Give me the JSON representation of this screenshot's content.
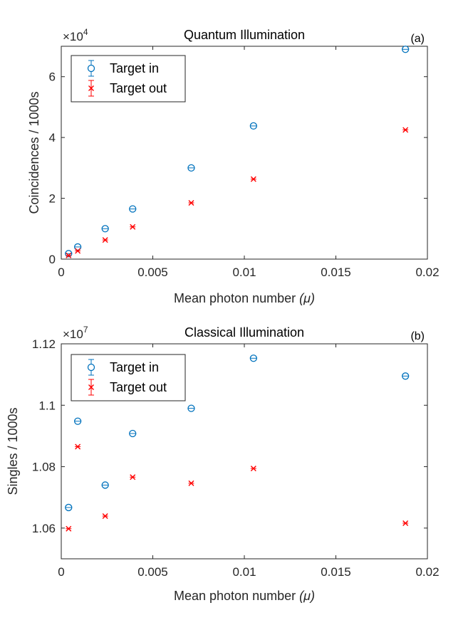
{
  "chart_data": [
    {
      "type": "scatter",
      "title": "Quantum Illumination",
      "panel_label": "(a)",
      "xlabel": "Mean photon number",
      "xlabel_symbol": "(μ)",
      "ylabel": "Coincidences / 1000s",
      "multiplier_base": "×10",
      "multiplier_exp": "4",
      "xlim": [
        0,
        0.02
      ],
      "ylim": [
        0,
        7
      ],
      "xticks": [
        0,
        0.005,
        0.01,
        0.015,
        0.02
      ],
      "xtick_labels": [
        "0",
        "0.005",
        "0.01",
        "0.015",
        "0.02"
      ],
      "yticks": [
        0,
        2,
        4,
        6
      ],
      "ytick_labels": [
        "0",
        "2",
        "4",
        "6"
      ],
      "legend_position": "top-left",
      "series": [
        {
          "name": "Target in",
          "marker": "circle",
          "color": "#0072BD",
          "x": [
            0.0004,
            0.0009,
            0.0024,
            0.0039,
            0.0071,
            0.0105,
            0.0188
          ],
          "y": [
            0.18,
            0.4,
            1.0,
            1.65,
            3.0,
            4.38,
            6.9
          ]
        },
        {
          "name": "Target out",
          "marker": "x",
          "color": "#FF0000",
          "x": [
            0.0004,
            0.0009,
            0.0024,
            0.0039,
            0.0071,
            0.0105,
            0.0188
          ],
          "y": [
            0.12,
            0.27,
            0.63,
            1.06,
            1.85,
            2.63,
            4.25
          ]
        }
      ]
    },
    {
      "type": "scatter",
      "title": "Classical Illumination",
      "panel_label": "(b)",
      "xlabel": "Mean photon number",
      "xlabel_symbol": "(μ)",
      "ylabel": "Singles / 1000s",
      "multiplier_base": "×10",
      "multiplier_exp": "7",
      "xlim": [
        0,
        0.02
      ],
      "ylim": [
        1.05,
        1.12
      ],
      "xticks": [
        0,
        0.005,
        0.01,
        0.015,
        0.02
      ],
      "xtick_labels": [
        "0",
        "0.005",
        "0.01",
        "0.015",
        "0.02"
      ],
      "yticks": [
        1.06,
        1.08,
        1.1,
        1.12
      ],
      "ytick_labels": [
        "1.06",
        "1.08",
        "1.1",
        "1.12"
      ],
      "legend_position": "top-left",
      "series": [
        {
          "name": "Target in",
          "marker": "circle",
          "color": "#0072BD",
          "x": [
            0.0004,
            0.0009,
            0.0024,
            0.0039,
            0.0071,
            0.0105,
            0.0188
          ],
          "y": [
            1.0667,
            1.0948,
            1.074,
            1.0908,
            1.099,
            1.1153,
            1.1095
          ]
        },
        {
          "name": "Target out",
          "marker": "x",
          "color": "#FF0000",
          "x": [
            0.0004,
            0.0009,
            0.0024,
            0.0039,
            0.0071,
            0.0105,
            0.0188
          ],
          "y": [
            1.0598,
            1.0865,
            1.0639,
            1.0766,
            1.0746,
            1.0794,
            1.0616
          ]
        }
      ]
    }
  ]
}
